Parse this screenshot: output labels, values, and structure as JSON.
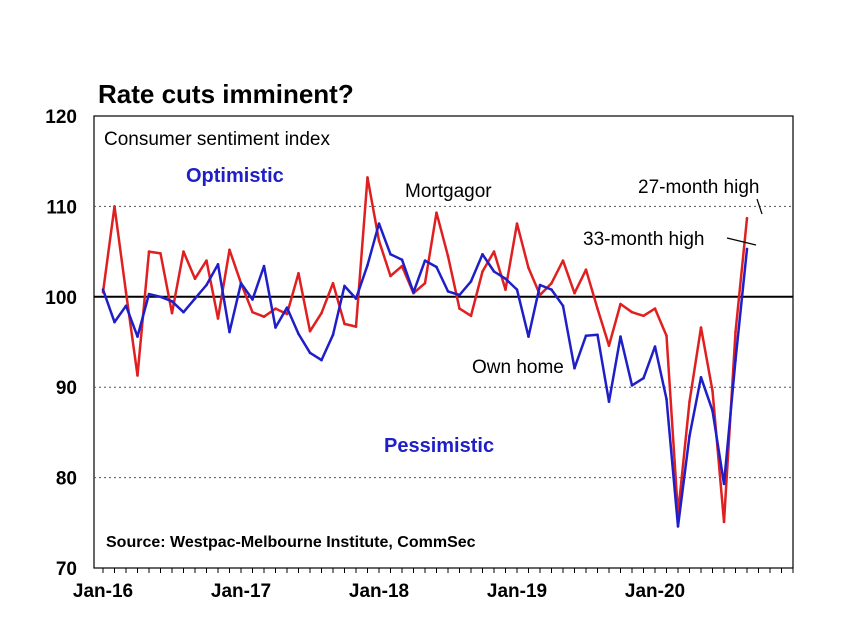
{
  "chart_data": {
    "type": "line",
    "title": "Rate cuts imminent?",
    "subtitle": "Consumer sentiment index",
    "source": "Source: Westpac-Melbourne Institute, CommSec",
    "ylim": [
      70,
      120
    ],
    "yticks": [
      "70",
      "80",
      "90",
      "100",
      "110",
      "120"
    ],
    "xticks": [
      {
        "label": "Jan-16",
        "index": 0
      },
      {
        "label": "Jan-17",
        "index": 12
      },
      {
        "label": "Jan-18",
        "index": 24
      },
      {
        "label": "Jan-19",
        "index": 36
      },
      {
        "label": "Jan-20",
        "index": 48
      }
    ],
    "reference_line": 100,
    "gridlines": [
      80,
      90,
      110
    ],
    "annotations": {
      "optimistic": "Optimistic",
      "pessimistic": "Pessimistic",
      "mortgagor": "Mortgagor",
      "own_home": "Own home",
      "high_27": "27-month high",
      "high_33": "33-month high"
    },
    "series": [
      {
        "name": "Mortgagor",
        "color": "#e02020",
        "values": [
          100.5,
          110,
          100.5,
          91.3,
          105,
          104.8,
          98.2,
          105,
          102,
          104,
          97.6,
          105.2,
          101.5,
          98.3,
          97.8,
          98.7,
          98.1,
          102.6,
          96.2,
          98.2,
          101.5,
          97,
          96.7,
          113.2,
          106.2,
          102.3,
          103.4,
          100.4,
          101.5,
          109.3,
          104.5,
          98.7,
          97.9,
          102.8,
          105,
          100.8,
          108.1,
          103.2,
          100.2,
          101.5,
          104,
          100.4,
          103,
          98.7,
          94.6,
          99.2,
          98.3,
          97.9,
          98.7,
          95.7,
          76,
          88.4,
          96.6,
          89.6,
          75.1,
          96.1,
          108.7
        ]
      },
      {
        "name": "Own home",
        "color": "#1f1fc8",
        "values": [
          100.8,
          97.2,
          99,
          95.6,
          100.3,
          100,
          99.5,
          98.3,
          99.8,
          101.3,
          103.6,
          96.1,
          101.5,
          99.7,
          103.4,
          96.6,
          98.8,
          95.9,
          93.8,
          93,
          95.8,
          101.2,
          99.8,
          103.5,
          108.1,
          104.7,
          104.1,
          100.5,
          104,
          103.3,
          100.6,
          100.2,
          101.7,
          104.7,
          102.8,
          102,
          100.8,
          95.6,
          101.3,
          100.8,
          99,
          92.1,
          95.7,
          95.8,
          88.4,
          95.6,
          90.2,
          91,
          94.5,
          88.7,
          74.6,
          84.6,
          91.1,
          87.4,
          79.3,
          93,
          105.3
        ]
      }
    ]
  }
}
